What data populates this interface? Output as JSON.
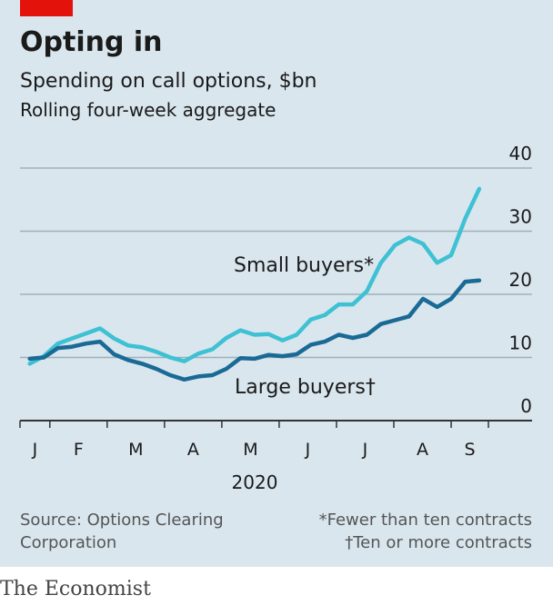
{
  "chart_data": {
    "type": "line",
    "title": "Opting in",
    "subtitle": "Spending on call options, $bn",
    "note": "Rolling four-week aggregate",
    "year_label": "2020",
    "categories": [
      "J",
      "F",
      "M",
      "A",
      "M",
      "J",
      "J",
      "A",
      "S"
    ],
    "x": [
      0.65,
      0.895,
      1.14,
      1.385,
      1.63,
      1.875,
      2.12,
      2.365,
      2.61,
      2.855,
      3.1,
      3.345,
      3.59,
      3.835,
      4.08,
      4.325,
      4.57,
      4.815,
      5.06,
      5.305,
      5.55,
      5.795,
      6.04,
      6.285,
      6.53,
      6.775,
      7.02,
      7.265,
      7.51,
      7.755,
      8.0,
      8.245,
      8.49
    ],
    "xlim": [
      0.48,
      8.65
    ],
    "xticks": [
      1,
      2,
      3,
      4,
      5,
      6,
      7,
      8
    ],
    "ylim": [
      0,
      40
    ],
    "yticks": [
      0,
      10,
      20,
      30,
      40
    ],
    "grid": true,
    "series": [
      {
        "name": "Small buyers*",
        "color": "#3ec1d3",
        "values": [
          9,
          10.2,
          12.2,
          13,
          13.8,
          14.6,
          13,
          11.9,
          11.6,
          10.9,
          10,
          9.4,
          10.6,
          11.3,
          13.1,
          14.3,
          13.6,
          13.7,
          12.7,
          13.6,
          16,
          16.7,
          18.4,
          18.4,
          20.5,
          25,
          27.8,
          29,
          28,
          25,
          26.2,
          32,
          36.7
        ]
      },
      {
        "name": "Large buyers†",
        "color": "#1a6a96",
        "values": [
          9.8,
          10,
          11.5,
          11.7,
          12.2,
          12.5,
          10.5,
          9.6,
          9,
          8.2,
          7.2,
          6.5,
          7,
          7.2,
          8.2,
          9.9,
          9.8,
          10.4,
          10.2,
          10.5,
          12,
          12.5,
          13.6,
          13.1,
          13.6,
          15.3,
          15.9,
          16.5,
          19.3,
          18,
          19.3,
          22,
          22.2
        ]
      }
    ],
    "source": [
      "Source: Options Clearing",
      "Corporation"
    ],
    "footnotes": [
      "*Fewer than ten contracts",
      "†Ten or more contracts"
    ],
    "brand": "The Economist"
  }
}
